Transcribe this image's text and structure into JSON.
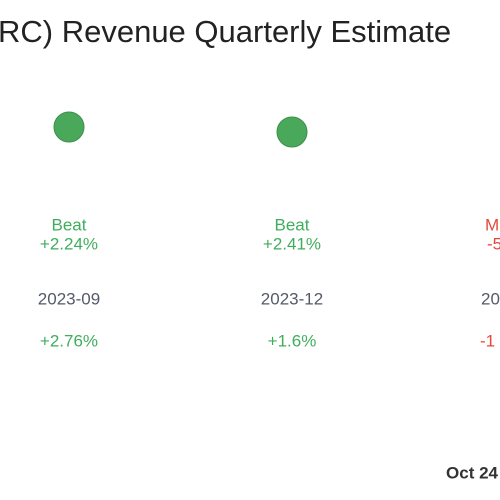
{
  "title": "RC) Revenue Quarterly Estimate",
  "columns": [
    {
      "status": "Beat",
      "surprise": "+2.24%",
      "period": "2023-09",
      "change": "+2.76%"
    },
    {
      "status": "Beat",
      "surprise": "+2.41%",
      "period": "2023-12",
      "change": "+1.6%"
    },
    {
      "status": "M",
      "surprise": "-5",
      "period": "20",
      "change": "-1"
    }
  ],
  "footer": "Oct 24"
}
